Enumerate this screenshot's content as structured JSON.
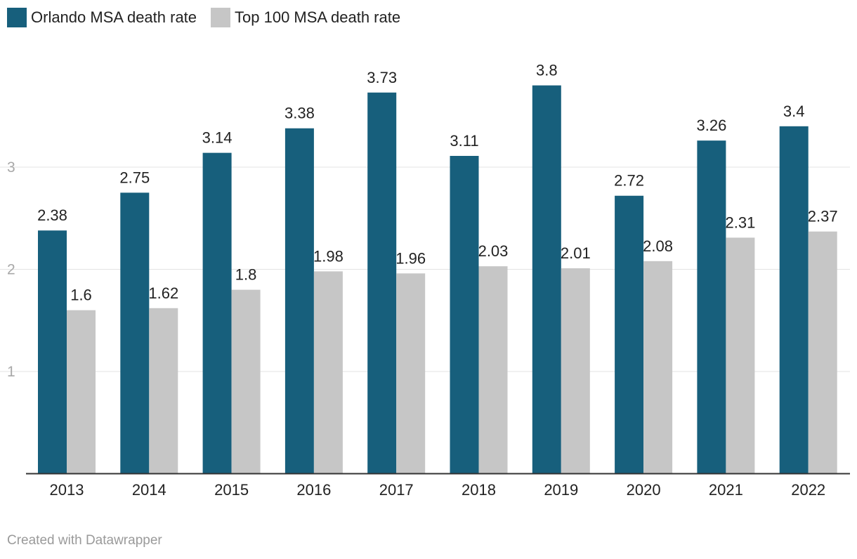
{
  "legend": [
    {
      "label": "Orlando MSA death rate",
      "color": "#175f7c"
    },
    {
      "label": "Top 100 MSA death rate",
      "color": "#c6c6c6"
    }
  ],
  "footer": {
    "credit": "Created with Datawrapper"
  },
  "chart_data": {
    "type": "bar",
    "title": "",
    "xlabel": "",
    "ylabel": "",
    "categories": [
      "2013",
      "2014",
      "2015",
      "2016",
      "2017",
      "2018",
      "2019",
      "2020",
      "2021",
      "2022"
    ],
    "series": [
      {
        "name": "Orlando MSA death rate",
        "color": "#175f7c",
        "values": [
          2.38,
          2.75,
          3.14,
          3.38,
          3.73,
          3.11,
          3.8,
          2.72,
          3.26,
          3.4
        ],
        "labels": [
          "2.38",
          "2.75",
          "3.14",
          "3.38",
          "3.73",
          "3.11",
          "3.8",
          "2.72",
          "3.26",
          "3.4"
        ]
      },
      {
        "name": "Top 100 MSA death rate",
        "color": "#c6c6c6",
        "values": [
          1.6,
          1.62,
          1.8,
          1.98,
          1.96,
          2.03,
          2.01,
          2.08,
          2.31,
          2.37
        ],
        "labels": [
          "1.6",
          "1.62",
          "1.8",
          "1.98",
          "1.96",
          "2.03",
          "2.01",
          "2.08",
          "2.31",
          "2.37"
        ]
      }
    ],
    "yticks": [
      1,
      2,
      3
    ],
    "ytick_labels": [
      "1",
      "2",
      "3"
    ],
    "ylim": [
      0,
      4
    ],
    "grid": true,
    "legend_position": "top-left"
  }
}
